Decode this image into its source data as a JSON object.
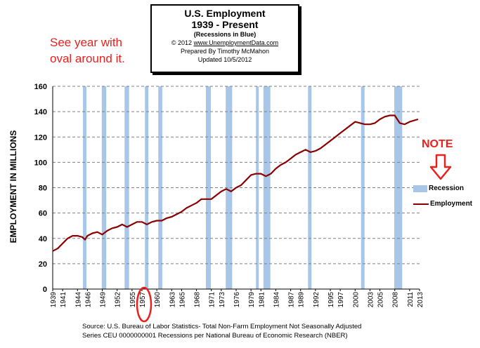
{
  "title": {
    "line1": "U.S. Employment",
    "line2": "1939 - Present",
    "line3": "(Recessions  in Blue)",
    "copyright_prefix": "© 2012",
    "site": "www.UnemploymentData.com",
    "prepared": "Prepared  By Timothy  McMahon",
    "updated": "Updated  10/5/2012"
  },
  "annotations": {
    "see_year_line1": "See year with",
    "see_year_line2": "oval around it.",
    "note": "NOTE"
  },
  "legend": {
    "recession": "Recession",
    "employment": "Employment"
  },
  "source": {
    "line1": "Source: U.S.  Bureau of Labor Statistics-  Total Non-Farm Employment Not Seasonally Adjusted",
    "line2": "Series CEU 0000000001      Recessions per National Bureau of Economic Research (NBER)"
  },
  "colors": {
    "recession": "#a8c6e8",
    "employment": "#8b0000",
    "annotation": "#e8211d",
    "grid": "#808080"
  },
  "chart_data": {
    "type": "line",
    "ylabel": "EMPLOYMENT IN MILLIONS",
    "xlabel": "",
    "ylim": [
      0,
      160
    ],
    "yticks": [
      0,
      20,
      40,
      60,
      80,
      100,
      120,
      140,
      160
    ],
    "xlim": [
      1939,
      2013
    ],
    "xticks": [
      1939,
      1941,
      1944,
      1946,
      1949,
      1952,
      1955,
      1957,
      1960,
      1963,
      1965,
      1968,
      1971,
      1973,
      1976,
      1979,
      1981,
      1984,
      1987,
      1989,
      1992,
      1995,
      1997,
      2000,
      2003,
      2005,
      2008,
      2011,
      2013
    ],
    "grid": true,
    "highlighted_year": 1957,
    "recessions": [
      [
        1945.1,
        1945.8
      ],
      [
        1948.9,
        1949.8
      ],
      [
        1953.5,
        1954.4
      ],
      [
        1957.6,
        1958.3
      ],
      [
        1960.3,
        1961.1
      ],
      [
        1969.9,
        1970.9
      ],
      [
        1973.9,
        1975.2
      ],
      [
        1980.0,
        1980.5
      ],
      [
        1981.5,
        1982.9
      ],
      [
        1990.5,
        1991.2
      ],
      [
        2001.2,
        2001.9
      ],
      [
        2007.9,
        2009.5
      ]
    ],
    "series": [
      {
        "name": "Employment",
        "x": [
          1939,
          1940,
          1941,
          1942,
          1943,
          1944,
          1945,
          1945.5,
          1946,
          1947,
          1948,
          1949,
          1950,
          1951,
          1952,
          1953,
          1954,
          1955,
          1956,
          1957,
          1958,
          1959,
          1960,
          1961,
          1962,
          1963,
          1964,
          1965,
          1966,
          1967,
          1968,
          1969,
          1970,
          1971,
          1972,
          1973,
          1974,
          1975,
          1976,
          1977,
          1978,
          1979,
          1980,
          1981,
          1982,
          1983,
          1984,
          1985,
          1986,
          1987,
          1988,
          1989,
          1990,
          1991,
          1992,
          1993,
          1994,
          1995,
          1996,
          1997,
          1998,
          1999,
          2000,
          2001,
          2002,
          2003,
          2004,
          2005,
          2006,
          2007,
          2008,
          2009,
          2010,
          2011,
          2012.7
        ],
        "values": [
          30,
          32,
          36,
          40,
          42,
          42,
          41,
          39,
          42,
          44,
          45,
          43,
          46,
          48,
          49,
          51,
          49,
          51,
          53,
          53,
          51,
          53,
          54,
          54,
          56,
          57,
          59,
          61,
          64,
          66,
          68,
          71,
          71,
          71,
          74,
          77,
          79,
          77,
          80,
          82,
          86,
          90,
          91,
          91,
          89,
          91,
          95,
          98,
          100,
          103,
          106,
          108,
          110,
          108,
          109,
          111,
          114,
          117,
          120,
          123,
          126,
          129,
          132,
          131,
          130,
          130,
          131,
          134,
          136,
          137,
          137,
          131,
          130,
          132,
          134
        ]
      }
    ]
  }
}
